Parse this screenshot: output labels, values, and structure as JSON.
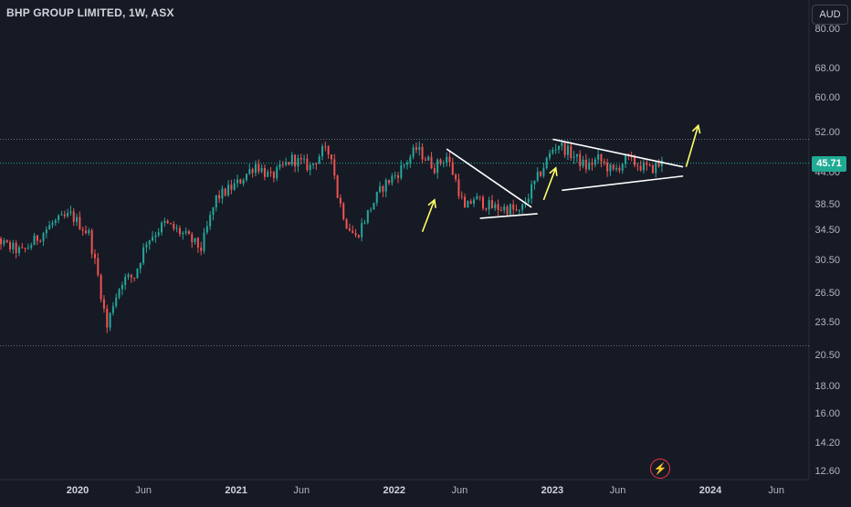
{
  "symbol_title": "BHP GROUP LIMITED, 1W, ASX",
  "currency_label": "AUD",
  "last_price_label": "45.71",
  "flash_icon": "lightning-icon",
  "colors": {
    "up": "#26a69a",
    "down": "#ef5350",
    "background": "#161a25",
    "price_tag": "#22ab94",
    "annotation_arrow": "#ffff66",
    "trendline": "#ffffff"
  },
  "chart_data": {
    "type": "candlestick",
    "title": "BHP GROUP LIMITED, 1W, ASX",
    "y_scale": "log",
    "ylim": [
      11.6,
      88
    ],
    "y_ticks": [
      80.0,
      68.0,
      60.0,
      52.0,
      44.0,
      38.5,
      34.5,
      30.5,
      26.5,
      23.5,
      20.5,
      18.0,
      16.0,
      14.2,
      12.6
    ],
    "y_tick_labels": [
      "80.00",
      "68.00",
      "60.00",
      "52.00",
      "44.00",
      "38.50",
      "34.50",
      "30.50",
      "26.50",
      "23.50",
      "20.50",
      "18.00",
      "16.00",
      "14.20",
      "12.60"
    ],
    "x_ticks": [
      {
        "date": "2020-01-01",
        "label": "2020",
        "year": true
      },
      {
        "date": "2020-06-01",
        "label": "Jun",
        "year": false
      },
      {
        "date": "2021-01-01",
        "label": "2021",
        "year": true
      },
      {
        "date": "2021-06-01",
        "label": "Jun",
        "year": false
      },
      {
        "date": "2022-01-01",
        "label": "2022",
        "year": true
      },
      {
        "date": "2022-06-01",
        "label": "Jun",
        "year": false
      },
      {
        "date": "2023-01-01",
        "label": "2023",
        "year": true
      },
      {
        "date": "2023-06-01",
        "label": "Jun",
        "year": false
      },
      {
        "date": "2024-01-01",
        "label": "2024",
        "year": true
      },
      {
        "date": "2024-06-01",
        "label": "Jun",
        "year": false
      }
    ],
    "grid": false,
    "last_price": 45.71,
    "horizontal_levels": [
      50.5,
      21.3
    ],
    "price_path_date": [
      "2019-05-06",
      "2019-07-15",
      "2019-08-26",
      "2019-11-04",
      "2019-12-16",
      "2020-01-27",
      "2020-02-17",
      "2020-03-09",
      "2020-03-23",
      "2020-04-13",
      "2020-05-11",
      "2020-06-08",
      "2020-07-20",
      "2020-08-31",
      "2020-10-12",
      "2020-11-16",
      "2021-01-04",
      "2021-02-15",
      "2021-03-22",
      "2021-05-10",
      "2021-06-21",
      "2021-07-19",
      "2021-08-09",
      "2021-08-23",
      "2021-09-13",
      "2021-10-04",
      "2021-11-08",
      "2021-12-06",
      "2022-01-10",
      "2022-02-21",
      "2022-04-04",
      "2022-05-02",
      "2022-05-23",
      "2022-06-13",
      "2022-07-04",
      "2022-08-15",
      "2022-09-26",
      "2022-10-17",
      "2022-11-14",
      "2023-01-02",
      "2023-01-16",
      "2023-02-20",
      "2023-03-20",
      "2023-04-17",
      "2023-05-22",
      "2023-06-19",
      "2023-07-17",
      "2023-08-14",
      "2023-09-11"
    ],
    "price_path_close": [
      37.2,
      32.5,
      31.5,
      35.5,
      36.8,
      34.0,
      28.5,
      23.0,
      25.5,
      28.0,
      28.5,
      33.0,
      35.5,
      34.0,
      32.0,
      39.5,
      42.0,
      45.5,
      43.0,
      46.5,
      45.0,
      48.0,
      47.5,
      40.0,
      35.5,
      33.5,
      38.0,
      41.5,
      44.0,
      48.5,
      45.0,
      47.0,
      42.5,
      37.5,
      39.5,
      38.0,
      37.8,
      37.0,
      41.0,
      48.5,
      49.5,
      47.0,
      45.0,
      46.5,
      44.0,
      46.5,
      45.5,
      44.5,
      45.71
    ]
  },
  "annotations": {
    "triangles": [
      {
        "label": "symmetrical-triangle-2022",
        "upper": [
          {
            "date": "2022-05-02",
            "price": 48.5
          },
          {
            "date": "2022-11-14",
            "price": 38.0
          }
        ],
        "lower": [
          {
            "date": "2022-07-18",
            "price": 36.3
          },
          {
            "date": "2022-11-28",
            "price": 37.0
          }
        ]
      },
      {
        "label": "symmetrical-triangle-2023",
        "upper": [
          {
            "date": "2023-01-02",
            "price": 50.5
          },
          {
            "date": "2023-10-30",
            "price": 45.0
          }
        ],
        "lower": [
          {
            "date": "2023-01-23",
            "price": 40.8
          },
          {
            "date": "2023-10-30",
            "price": 43.3
          }
        ]
      }
    ],
    "arrows": [
      {
        "from": {
          "date": "2022-03-07",
          "price": 34.3
        },
        "to": {
          "date": "2022-04-04",
          "price": 39.2
        }
      },
      {
        "from": {
          "date": "2022-12-12",
          "price": 39.2
        },
        "to": {
          "date": "2023-01-09",
          "price": 44.8
        }
      },
      {
        "from": {
          "date": "2023-11-06",
          "price": 45.0
        },
        "to": {
          "date": "2023-12-04",
          "price": 53.5
        }
      }
    ]
  }
}
